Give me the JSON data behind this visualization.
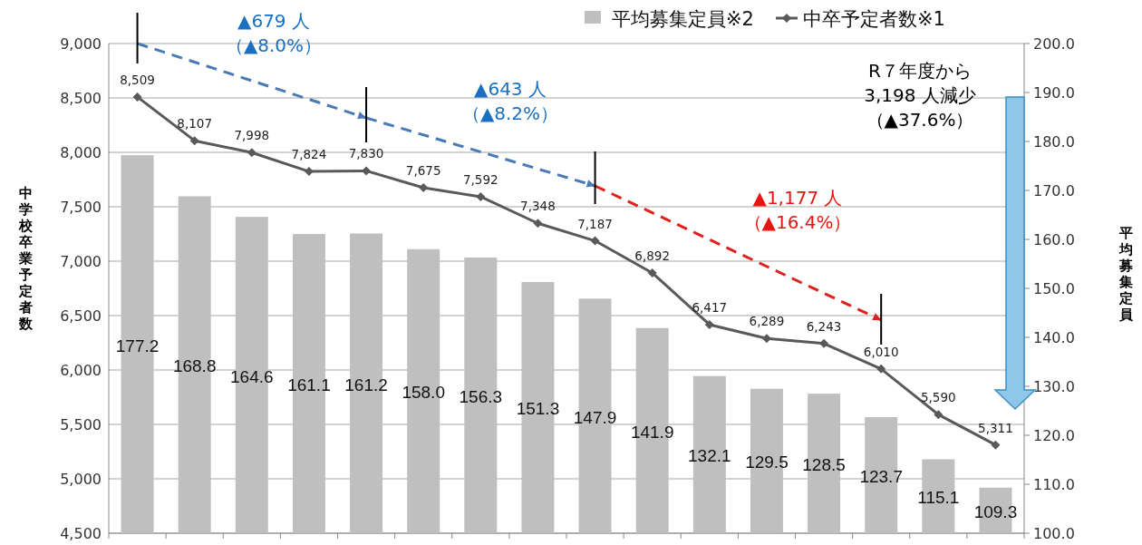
{
  "chart_data": {
    "type": "bar",
    "categories": [
      null,
      null,
      null,
      null,
      null,
      null,
      null,
      null,
      null,
      null,
      null,
      null,
      null,
      null,
      null,
      null
    ],
    "ylabel": "中学校卒業予定者数",
    "y2label": "平均募集定員",
    "series": [
      {
        "name": "平均募集定員※2",
        "axis": "y2",
        "color": "#bfbfbf",
        "values": [
          177.2,
          168.8,
          164.6,
          161.1,
          161.2,
          158.0,
          156.3,
          151.3,
          147.9,
          141.9,
          132.1,
          129.5,
          128.5,
          123.7,
          115.1,
          109.3
        ],
        "value_labels": [
          "177.2",
          "168.8",
          "164.6",
          "161.1",
          "161.2",
          "158.0",
          "156.3",
          "151.3",
          "147.9",
          "141.9",
          "132.1",
          "129.5",
          "128.5",
          "123.7",
          "115.1",
          "109.3"
        ]
      },
      {
        "name": "中卒予定者数※1",
        "type": "line",
        "color": "#595959",
        "marker": "diamond",
        "values": [
          8509,
          8107,
          7998,
          7824,
          7830,
          7675,
          7592,
          7348,
          7187,
          6892,
          6417,
          6289,
          6243,
          6010,
          5590,
          5311
        ],
        "value_labels": [
          "8,509",
          "8,107",
          "7,998",
          "7,824",
          "7,830",
          "7,675",
          "7,592",
          "7,348",
          "7,187",
          "6,892",
          "6,417",
          "6,289",
          "6,243",
          "6,010",
          "5,590",
          "5,311"
        ]
      }
    ],
    "ylim": [
      4500,
      9000
    ],
    "yticks": [
      {
        "value": 4500,
        "label": "4,500"
      },
      {
        "value": 5000,
        "label": "5,000"
      },
      {
        "value": 5500,
        "label": "5,500"
      },
      {
        "value": 6000,
        "label": "6,000"
      },
      {
        "value": 6500,
        "label": "6,500"
      },
      {
        "value": 7000,
        "label": "7,000"
      },
      {
        "value": 7500,
        "label": "7,500"
      },
      {
        "value": 8000,
        "label": "8,000"
      },
      {
        "value": 8500,
        "label": "8,500"
      },
      {
        "value": 9000,
        "label": "9,000"
      }
    ],
    "y2lim": [
      100,
      200
    ],
    "y2ticks": [
      {
        "value": 100,
        "label": "100.0"
      },
      {
        "value": 110,
        "label": "110.0"
      },
      {
        "value": 120,
        "label": "120.0"
      },
      {
        "value": 130,
        "label": "130.0"
      },
      {
        "value": 140,
        "label": "140.0"
      },
      {
        "value": 150,
        "label": "150.0"
      },
      {
        "value": 160,
        "label": "160.0"
      },
      {
        "value": 170,
        "label": "170.0"
      },
      {
        "value": 180,
        "label": "180.0"
      },
      {
        "value": 190,
        "label": "190.0"
      },
      {
        "value": 200,
        "label": "200.0"
      }
    ],
    "grid": "y",
    "legend": "top right",
    "annotations": [
      "▲679 人",
      "（▲8.0%）",
      "▲643 人",
      "（▲8.2%）",
      "▲1,177 人",
      "（▲16.4%）",
      "R７年度から",
      "3,198 人減少",
      "（▲37.6%）"
    ]
  }
}
